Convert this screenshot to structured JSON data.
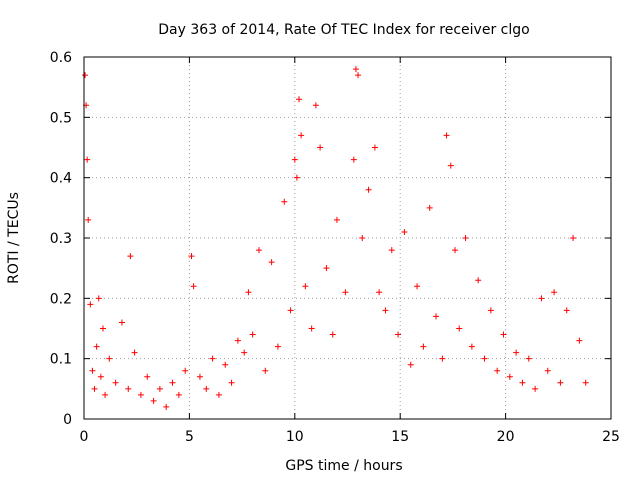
{
  "chart_data": {
    "type": "scatter",
    "title": "Day 363 of 2014, Rate Of TEC Index for receiver clgo",
    "xlabel": "GPS time / hours",
    "ylabel": "ROTI / TECUs",
    "xlim": [
      0,
      25
    ],
    "ylim": [
      0,
      0.6
    ],
    "x_ticks": [
      "0",
      "5",
      "10",
      "15",
      "20",
      "25"
    ],
    "y_ticks": [
      "0",
      "0.1",
      "0.2",
      "0.3",
      "0.4",
      "0.5",
      "0.6"
    ],
    "grid": true,
    "marker": "+",
    "series_color": "#ff0000",
    "series": [
      {
        "name": "ROTI",
        "x": [
          0.05,
          0.1,
          0.15,
          0.2,
          0.3,
          0.4,
          0.5,
          0.6,
          0.7,
          0.8,
          0.9,
          1.0,
          1.2,
          1.5,
          1.8,
          2.1,
          2.2,
          2.4,
          2.7,
          3.0,
          3.3,
          3.6,
          3.9,
          4.2,
          4.5,
          4.8,
          5.1,
          5.2,
          5.5,
          5.8,
          6.1,
          6.4,
          6.7,
          7.0,
          7.3,
          7.6,
          7.8,
          8.0,
          8.3,
          8.6,
          8.9,
          9.2,
          9.5,
          9.8,
          10.0,
          10.1,
          10.2,
          10.3,
          10.5,
          10.8,
          11.0,
          11.2,
          11.5,
          11.8,
          12.0,
          12.4,
          12.8,
          12.9,
          13.0,
          13.2,
          13.5,
          13.8,
          14.0,
          14.3,
          14.6,
          14.9,
          15.2,
          15.5,
          15.8,
          16.1,
          16.4,
          16.7,
          17.0,
          17.2,
          17.4,
          17.6,
          17.8,
          18.1,
          18.4,
          18.7,
          19.0,
          19.3,
          19.6,
          19.9,
          20.2,
          20.5,
          20.8,
          21.1,
          21.4,
          21.7,
          22.0,
          22.3,
          22.6,
          22.9,
          23.2,
          23.5,
          23.8
        ],
        "y": [
          0.57,
          0.52,
          0.43,
          0.33,
          0.19,
          0.08,
          0.05,
          0.12,
          0.2,
          0.07,
          0.15,
          0.04,
          0.1,
          0.06,
          0.16,
          0.05,
          0.27,
          0.11,
          0.04,
          0.07,
          0.03,
          0.05,
          0.02,
          0.06,
          0.04,
          0.08,
          0.27,
          0.22,
          0.07,
          0.05,
          0.1,
          0.04,
          0.09,
          0.06,
          0.13,
          0.11,
          0.21,
          0.14,
          0.28,
          0.08,
          0.26,
          0.12,
          0.36,
          0.18,
          0.43,
          0.4,
          0.53,
          0.47,
          0.22,
          0.15,
          0.52,
          0.45,
          0.25,
          0.14,
          0.33,
          0.21,
          0.43,
          0.58,
          0.57,
          0.3,
          0.38,
          0.45,
          0.21,
          0.18,
          0.28,
          0.14,
          0.31,
          0.09,
          0.22,
          0.12,
          0.35,
          0.17,
          0.1,
          0.47,
          0.42,
          0.28,
          0.15,
          0.3,
          0.12,
          0.23,
          0.1,
          0.18,
          0.08,
          0.14,
          0.07,
          0.11,
          0.06,
          0.1,
          0.05,
          0.2,
          0.08,
          0.21,
          0.06,
          0.18,
          0.3,
          0.13,
          0.06
        ]
      }
    ]
  }
}
